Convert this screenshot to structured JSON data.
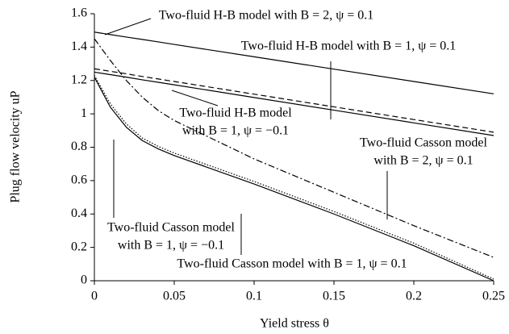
{
  "chart_data": {
    "type": "line",
    "xlabel": "Yield stress θ",
    "ylabel": "Plug flow velocity uP",
    "x": [
      0,
      0.01,
      0.02,
      0.03,
      0.04,
      0.05,
      0.1,
      0.15,
      0.2,
      0.25
    ],
    "xlim": [
      0,
      0.25
    ],
    "xticks": [
      0,
      0.05,
      0.1,
      0.15,
      0.2,
      0.25
    ],
    "ylim": [
      0,
      1.6
    ],
    "yticks": [
      0,
      0.2,
      0.4,
      0.6,
      0.8,
      1,
      1.2,
      1.4,
      1.6
    ],
    "grid": false,
    "series": [
      {
        "color": "#000000",
        "style": "solid",
        "values": [
          1.49,
          1.475,
          1.46,
          1.446,
          1.431,
          1.416,
          1.342,
          1.268,
          1.194,
          1.12
        ]
      },
      {
        "color": "#000000",
        "style": "dashed",
        "values": [
          1.27,
          1.255,
          1.24,
          1.224,
          1.209,
          1.194,
          1.118,
          1.042,
          0.966,
          0.89
        ]
      },
      {
        "color": "#000000",
        "style": "solid",
        "values": [
          1.25,
          1.235,
          1.22,
          1.204,
          1.189,
          1.174,
          1.098,
          1.022,
          0.946,
          0.87
        ]
      },
      {
        "color": "#000000",
        "style": "dashdot",
        "values": [
          1.45,
          1.32,
          1.2,
          1.1,
          1.02,
          0.96,
          0.73,
          0.53,
          0.33,
          0.14
        ]
      },
      {
        "color": "#000000",
        "style": "solid",
        "values": [
          1.22,
          1.04,
          0.92,
          0.84,
          0.79,
          0.75,
          0.58,
          0.4,
          0.21,
          0.0
        ]
      },
      {
        "color": "#000000",
        "style": "dotted",
        "values": [
          1.23,
          1.06,
          0.94,
          0.855,
          0.805,
          0.765,
          0.595,
          0.415,
          0.225,
          0.01
        ]
      }
    ],
    "annotations": [
      {
        "lines": [
          "Two-fluid H-B model with B = 2, ψ = 0.1"
        ]
      },
      {
        "lines": [
          "Two-fluid H-B model with B = 1, ψ = 0.1"
        ]
      },
      {
        "lines": [
          "Two-fluid H-B model",
          "with B = 1, ψ = −0.1"
        ]
      },
      {
        "lines": [
          "Two-fluid Casson model",
          "with B = 2, ψ = 0.1"
        ]
      },
      {
        "lines": [
          "Two-fluid Casson model",
          "with B = 1, ψ = −0.1"
        ]
      },
      {
        "lines": [
          "Two-fluid Casson model with B = 1, ψ = 0.1"
        ]
      }
    ]
  }
}
